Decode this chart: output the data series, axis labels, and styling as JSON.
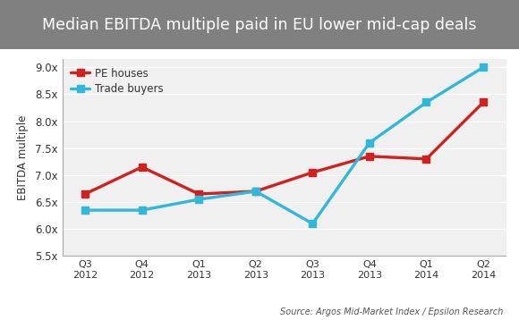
{
  "title": "Median EBITDA multiple paid in EU lower mid-cap deals",
  "title_bg_color": "#808080",
  "title_text_color": "#ffffff",
  "fig_bg_color": "#ffffff",
  "plot_bg_color": "#f0f0f0",
  "x_labels": [
    "Q3\n2012",
    "Q4\n2012",
    "Q1\n2013",
    "Q2\n2013",
    "Q3\n2013",
    "Q4\n2013",
    "Q1\n2014",
    "Q2\n2014"
  ],
  "pe_houses": [
    6.65,
    7.15,
    6.65,
    6.7,
    7.05,
    7.35,
    7.3,
    8.35
  ],
  "trade_buyers": [
    6.35,
    6.35,
    6.55,
    6.7,
    6.1,
    7.6,
    8.35,
    9.0
  ],
  "pe_color": "#d02020",
  "trade_color": "#30b8d8",
  "ylabel": "EBITDA multiple",
  "ylim_min": 5.5,
  "ylim_max": 9.15,
  "yticks": [
    5.5,
    6.0,
    6.5,
    7.0,
    7.5,
    8.0,
    8.5,
    9.0
  ],
  "source_text": "Source: Argos Mid-Market Index / Epsilon Research",
  "legend_pe": "PE houses",
  "legend_trade": "Trade buyers",
  "line_width": 2.4,
  "marker_size": 6
}
